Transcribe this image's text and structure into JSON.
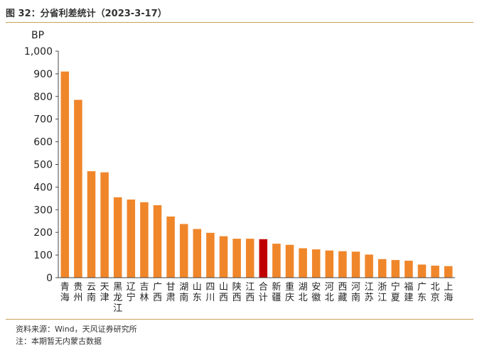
{
  "header": {
    "title": "图 32：分省利差统计（2023-3-17）"
  },
  "footer": {
    "source": "资料来源：Wind，天风证券研究所",
    "note": "注：本期暂无内蒙古数据"
  },
  "colors": {
    "bar": "#F0862A",
    "highlight": "#C00000",
    "axis": "#444444",
    "rule": "#C9A35A"
  },
  "chart_data": {
    "type": "bar",
    "title": "",
    "ylabel": "BP",
    "xlabel": "",
    "ylim": [
      0,
      1000
    ],
    "yticks": [
      0,
      100,
      200,
      300,
      400,
      500,
      600,
      700,
      800,
      900,
      1000
    ],
    "ytick_labels": [
      "0",
      "100",
      "200",
      "300",
      "400",
      "500",
      "600",
      "700",
      "800",
      "900",
      "1,000"
    ],
    "grid": false,
    "legend": "none",
    "categories": [
      "青海",
      "贵州",
      "云南",
      "天津",
      "黑龙江",
      "辽宁",
      "吉林",
      "广西",
      "甘肃",
      "湖南",
      "山东",
      "四川",
      "山西",
      "陕西",
      "江西",
      "合计",
      "新疆",
      "重庆",
      "湖北",
      "安徽",
      "河北",
      "西藏",
      "河南",
      "江苏",
      "浙江",
      "宁夏",
      "福建",
      "广东",
      "北京",
      "上海"
    ],
    "values": [
      910,
      785,
      470,
      465,
      355,
      345,
      333,
      320,
      270,
      237,
      215,
      198,
      183,
      172,
      172,
      170,
      150,
      145,
      130,
      125,
      120,
      117,
      115,
      102,
      82,
      78,
      75,
      58,
      53,
      51
    ],
    "highlight_category": "合计"
  }
}
